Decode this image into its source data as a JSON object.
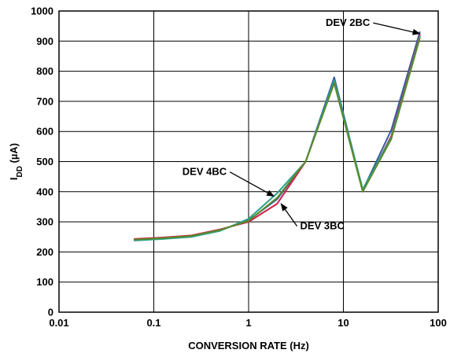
{
  "chart_data": {
    "type": "line",
    "title": "",
    "xlabel": "CONVERSION RATE (Hz)",
    "ylabel_main": "I",
    "ylabel_sub": "DD",
    "ylabel_unit": " (µA)",
    "xscale": "log",
    "xlim": [
      0.01,
      100
    ],
    "ylim": [
      0,
      1000
    ],
    "grid": true,
    "x_ticks": [
      0.01,
      0.1,
      1,
      10,
      100
    ],
    "x_tick_labels": [
      "0.01",
      "0.1",
      "1",
      "10",
      "100"
    ],
    "y_ticks": [
      0,
      100,
      200,
      300,
      400,
      500,
      600,
      700,
      800,
      900,
      1000
    ],
    "y_tick_labels": [
      "0",
      "100",
      "200",
      "300",
      "400",
      "500",
      "600",
      "700",
      "800",
      "900",
      "1000"
    ],
    "x": [
      0.0625,
      0.125,
      0.25,
      0.5,
      1,
      2,
      4,
      8,
      16,
      32,
      64
    ],
    "series": [
      {
        "name": "DEV 2BC",
        "color": "#3a5aa8",
        "values": [
          240,
          245,
          252,
          272,
          305,
          375,
          500,
          780,
          405,
          605,
          930
        ]
      },
      {
        "name": "DEV 3BC",
        "color": "#d0204a",
        "values": [
          243,
          248,
          255,
          275,
          300,
          360,
          500,
          765,
          402,
          585,
          920
        ]
      },
      {
        "name": "DEV 4BC",
        "color": "#2aa08a",
        "values": [
          238,
          243,
          250,
          270,
          310,
          395,
          500,
          770,
          408,
          580,
          915
        ]
      },
      {
        "name": "",
        "color": "#5a8a2a",
        "values": [
          241,
          246,
          253,
          273,
          303,
          380,
          500,
          760,
          400,
          575,
          910
        ]
      }
    ],
    "callouts": [
      {
        "text": "DEV 2BC",
        "series": 0,
        "anchor_x": 64,
        "anchor_y": 925,
        "label_x": 6.5,
        "label_y": 950
      },
      {
        "text": "DEV 4BC",
        "series": 2,
        "anchor_x": 1.85,
        "anchor_y": 385,
        "label_x": 0.2,
        "label_y": 455
      },
      {
        "text": "DEV 3BC",
        "series": 1,
        "anchor_x": 2.2,
        "anchor_y": 360,
        "label_x": 3.5,
        "label_y": 275
      }
    ]
  }
}
